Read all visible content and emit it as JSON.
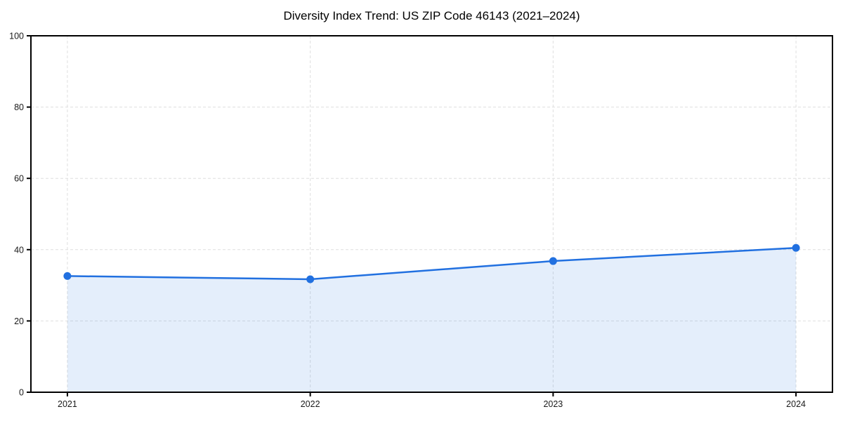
{
  "page": {
    "background": "#FFFFFF"
  },
  "chart_data": {
    "type": "area",
    "title": "Diversity Index Trend: US ZIP Code 46143 (2021–2024)",
    "categories": [
      "2021",
      "2022",
      "2023",
      "2024"
    ],
    "series": [
      {
        "name": "Diversity Index",
        "values": [
          32.6,
          31.7,
          36.8,
          40.5
        ]
      }
    ],
    "xlabel": "",
    "ylabel": "",
    "ylim": [
      0,
      100
    ],
    "yticks": [
      0,
      20,
      40,
      60,
      80,
      100
    ],
    "grid": "dashed",
    "legend": "none",
    "colors": {
      "line": "#2170E0",
      "marker": "#2170E0",
      "area_fill": "#2170E0",
      "area_fill_rendered": "#E4EEFB",
      "grid": "#DFDFDF",
      "spine": "#000000",
      "tick_label": "#1A1A1A",
      "title": "#000000",
      "background": "#FFFFFF"
    }
  }
}
